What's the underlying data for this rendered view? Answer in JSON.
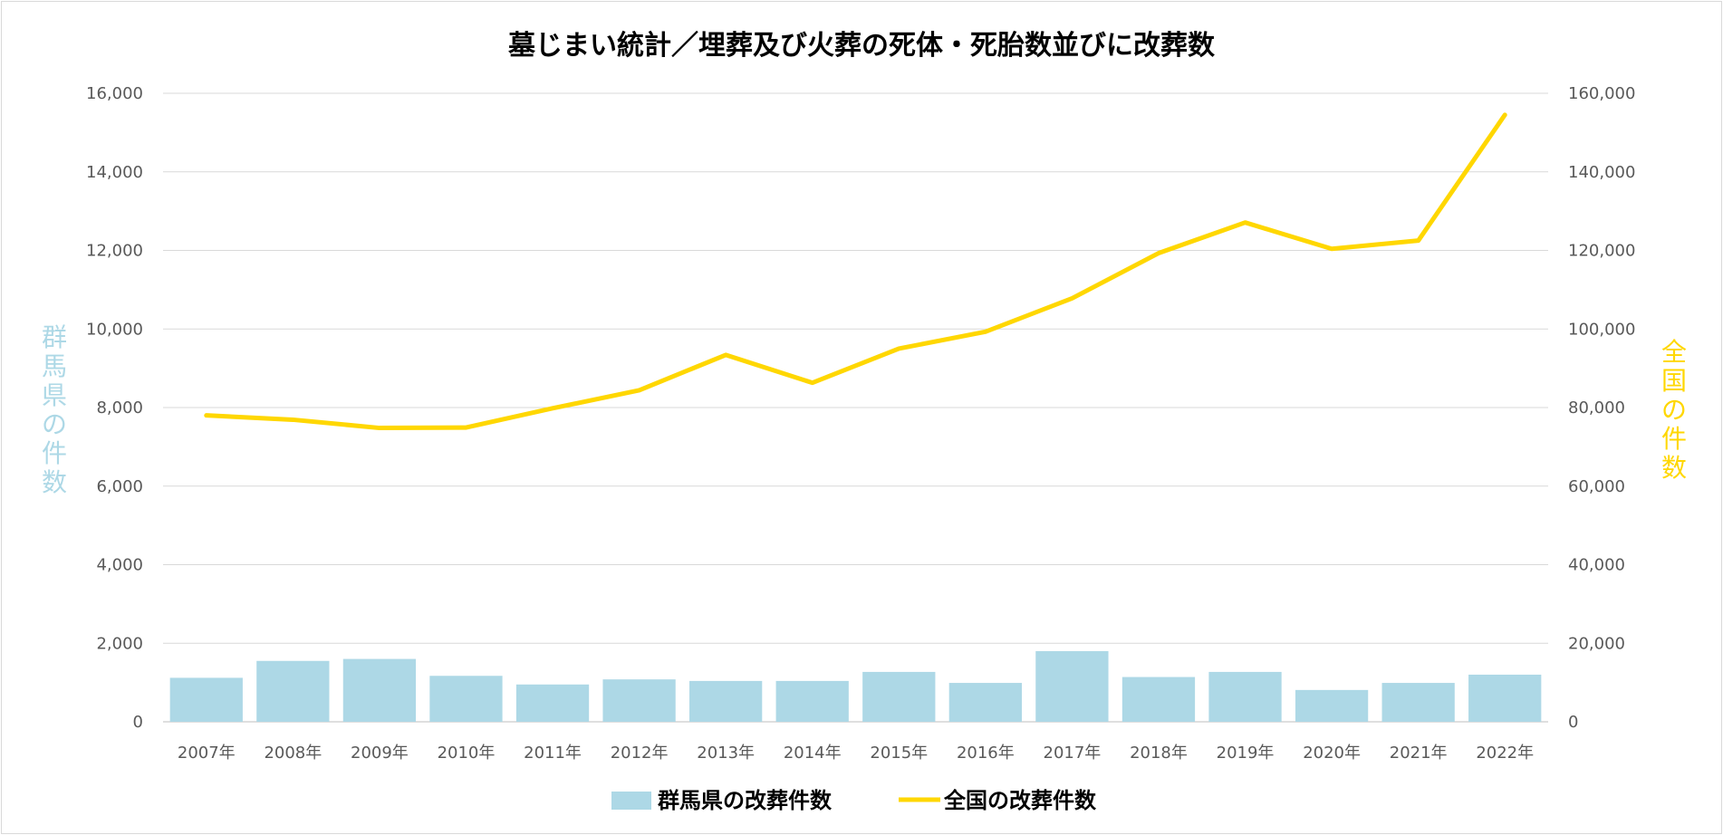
{
  "chart_data": {
    "type": "bar+line",
    "title": "墓じまい統計／埋葬及び火葬の死体・死胎数並びに改葬数",
    "categories": [
      "2007年",
      "2008年",
      "2009年",
      "2010年",
      "2011年",
      "2012年",
      "2013年",
      "2014年",
      "2015年",
      "2016年",
      "2017年",
      "2018年",
      "2019年",
      "2020年",
      "2021年",
      "2022年"
    ],
    "series": [
      {
        "name": "群馬県の改葬件数",
        "type": "bar",
        "axis": "left",
        "color": "#add8e6",
        "values": [
          1120,
          1550,
          1600,
          1170,
          950,
          1080,
          1040,
          1040,
          1270,
          990,
          1800,
          1140,
          1270,
          810,
          990,
          1200
        ]
      },
      {
        "name": "全国の改葬件数",
        "type": "line",
        "axis": "right",
        "color": "#ffd700",
        "values": [
          78000,
          76900,
          74800,
          74900,
          79800,
          84400,
          93400,
          86300,
          95000,
          99300,
          107800,
          119300,
          127100,
          120400,
          122500,
          154500
        ]
      }
    ],
    "y_left": {
      "label": "群馬県の件数",
      "label_color": "#add8e6",
      "range": [
        0,
        16000
      ],
      "ticks": [
        "0",
        "2,000",
        "4,000",
        "6,000",
        "8,000",
        "10,000",
        "12,000",
        "14,000",
        "16,000"
      ]
    },
    "y_right": {
      "label": "全国の件数",
      "label_color": "#ffd700",
      "range": [
        0,
        160000
      ],
      "ticks": [
        "0",
        "20,000",
        "40,000",
        "60,000",
        "80,000",
        "100,000",
        "120,000",
        "140,000",
        "160,000"
      ]
    },
    "grid": true,
    "legend_position": "bottom"
  }
}
